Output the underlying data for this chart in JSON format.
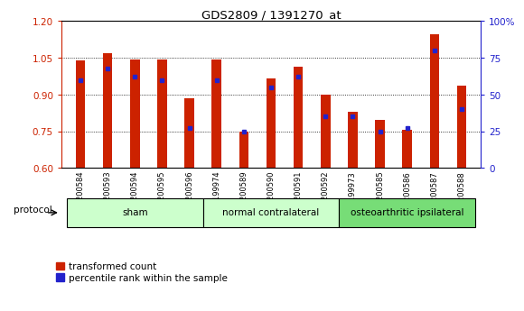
{
  "title": "GDS2809 / 1391270_at",
  "samples": [
    "GSM200584",
    "GSM200593",
    "GSM200594",
    "GSM200595",
    "GSM200596",
    "GSM199974",
    "GSM200589",
    "GSM200590",
    "GSM200591",
    "GSM200592",
    "GSM199973",
    "GSM200585",
    "GSM200586",
    "GSM200587",
    "GSM200588"
  ],
  "red_values": [
    1.04,
    1.07,
    1.045,
    1.045,
    0.885,
    1.045,
    0.748,
    0.965,
    1.015,
    0.9,
    0.83,
    0.795,
    0.755,
    1.145,
    0.935
  ],
  "blue_percentiles": [
    60,
    68,
    62,
    60,
    27,
    60,
    25,
    55,
    62,
    35,
    35,
    25,
    27,
    80,
    40
  ],
  "ylim_left": [
    0.6,
    1.2
  ],
  "ylim_right": [
    0,
    100
  ],
  "yticks_left": [
    0.6,
    0.75,
    0.9,
    1.05,
    1.2
  ],
  "yticks_right": [
    0,
    25,
    50,
    75,
    100
  ],
  "group_colors": [
    "#ccffcc",
    "#ccffcc",
    "#77dd77"
  ],
  "group_starts": [
    0,
    5,
    10
  ],
  "group_ends": [
    5,
    10,
    15
  ],
  "group_labels": [
    "sham",
    "normal contralateral",
    "osteoarthritic ipsilateral"
  ],
  "red_color": "#cc2200",
  "blue_color": "#2222cc",
  "bar_width": 0.35,
  "baseline": 0.6,
  "bg_color": "#ffffff",
  "legend_red": "transformed count",
  "legend_blue": "percentile rank within the sample",
  "protocol_label": "protocol"
}
